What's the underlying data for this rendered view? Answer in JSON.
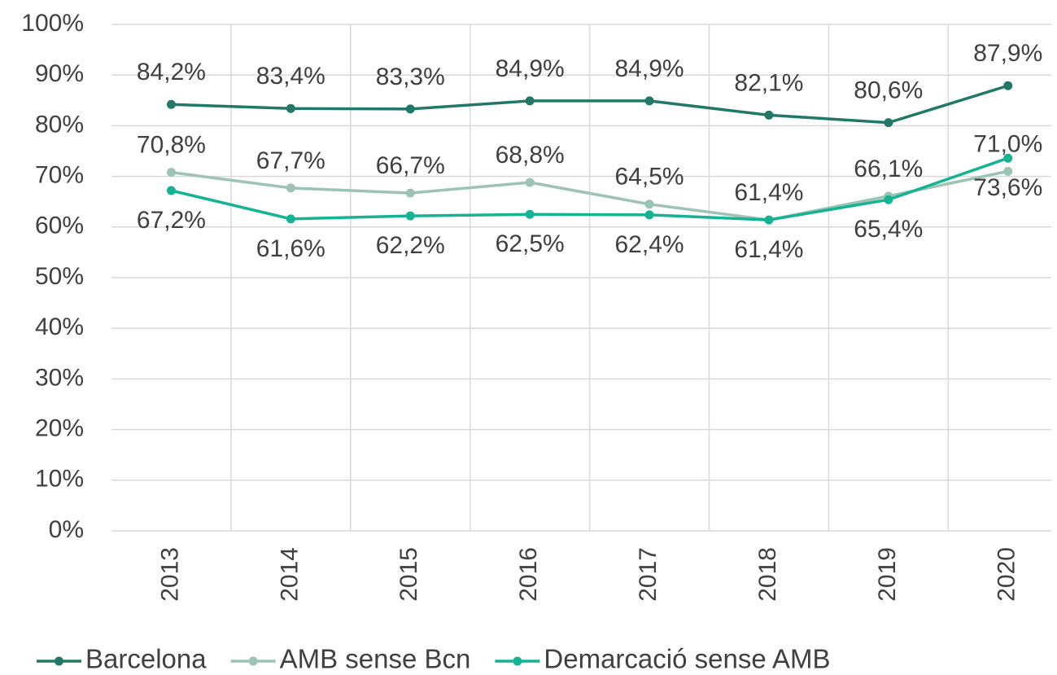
{
  "chart_data": {
    "type": "line",
    "categories": [
      "2013",
      "2014",
      "2015",
      "2016",
      "2017",
      "2018",
      "2019",
      "2020"
    ],
    "series": [
      {
        "name": "Barcelona",
        "color": "#217867",
        "values": [
          84.2,
          83.4,
          83.3,
          84.9,
          84.9,
          82.1,
          80.6,
          87.9
        ],
        "value_labels": [
          "84,2%",
          "83,4%",
          "83,3%",
          "84,9%",
          "84,9%",
          "82,1%",
          "80,6%",
          "87,9%"
        ]
      },
      {
        "name": "AMB sense Bcn",
        "color": "#9dc3b4",
        "values": [
          70.8,
          67.7,
          66.7,
          68.8,
          64.5,
          61.4,
          66.1,
          71.0
        ],
        "value_labels": [
          "70,8%",
          "67,7%",
          "66,7%",
          "68,8%",
          "64,5%",
          "61,4%",
          "66,1%",
          "71,0%"
        ]
      },
      {
        "name": "Demarcació sense AMB",
        "color": "#14b394",
        "values": [
          67.2,
          61.6,
          62.2,
          62.5,
          62.4,
          61.4,
          65.4,
          73.6
        ],
        "value_labels": [
          "67,2%",
          "61,6%",
          "62,2%",
          "62,5%",
          "62,4%",
          "61,4%",
          "65,4%",
          "73,6%"
        ]
      }
    ],
    "ylim": [
      0,
      100
    ],
    "yticks": [
      {
        "value": 0,
        "label": "0%"
      },
      {
        "value": 10,
        "label": "10%"
      },
      {
        "value": 20,
        "label": "20%"
      },
      {
        "value": 30,
        "label": "30%"
      },
      {
        "value": 40,
        "label": "40%"
      },
      {
        "value": 50,
        "label": "50%"
      },
      {
        "value": 60,
        "label": "60%"
      },
      {
        "value": 70,
        "label": "70%"
      },
      {
        "value": 80,
        "label": "80%"
      },
      {
        "value": 90,
        "label": "90%"
      },
      {
        "value": 100,
        "label": "100%"
      }
    ],
    "grid": true,
    "legend": "bottom"
  }
}
